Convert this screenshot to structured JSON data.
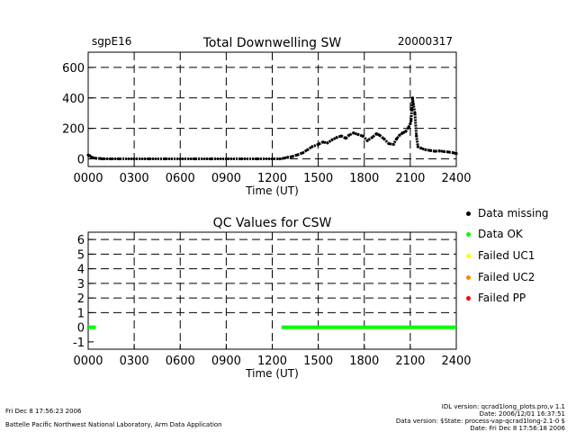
{
  "chart_data": [
    {
      "type": "scatter",
      "title": "Total Downwelling SW",
      "subtitle_left": "sgpE16",
      "subtitle_right": "20000317",
      "xlabel": "Time (UT)",
      "ylabel": "",
      "xlim": [
        0,
        24
      ],
      "ylim": [
        -50,
        700
      ],
      "x_tick_labels": [
        "0000",
        "0300",
        "0600",
        "0900",
        "1200",
        "1500",
        "1800",
        "2100",
        "2400"
      ],
      "y_tick_labels": [
        "0",
        "200",
        "400",
        "600"
      ],
      "grid": true,
      "series": [
        {
          "color": "#000000",
          "x": [
            0.0,
            0.1,
            0.2,
            0.3,
            0.5,
            0.8,
            1.0,
            1.5,
            2.0,
            3.0,
            4.0,
            5.0,
            6.0,
            7.0,
            8.0,
            9.0,
            10.0,
            11.0,
            12.0,
            12.5,
            12.8,
            13.0,
            13.3,
            13.6,
            14.0,
            14.3,
            14.6,
            15.0,
            15.3,
            15.6,
            15.9,
            16.2,
            16.5,
            16.8,
            17.0,
            17.3,
            17.6,
            17.9,
            18.2,
            18.5,
            18.8,
            19.0,
            19.3,
            19.6,
            19.9,
            20.1,
            20.3,
            20.5,
            20.7,
            20.9,
            21.0,
            21.05,
            21.1,
            21.15,
            21.2,
            21.3,
            21.4,
            21.5,
            21.7,
            22.0,
            22.3,
            22.6,
            22.9,
            23.2,
            23.5,
            23.8,
            24.0
          ],
          "y": [
            25,
            20,
            12,
            8,
            4,
            2,
            0,
            0,
            0,
            0,
            0,
            0,
            0,
            0,
            0,
            0,
            0,
            0,
            0,
            0,
            5,
            10,
            15,
            25,
            40,
            60,
            80,
            95,
            110,
            105,
            125,
            140,
            150,
            135,
            155,
            170,
            160,
            150,
            120,
            140,
            165,
            155,
            130,
            100,
            95,
            130,
            155,
            170,
            180,
            210,
            230,
            250,
            330,
            400,
            360,
            300,
            150,
            80,
            70,
            60,
            55,
            50,
            52,
            48,
            45,
            40,
            35
          ]
        }
      ]
    },
    {
      "type": "scatter",
      "title": "QC Values for CSW",
      "xlabel": "Time (UT)",
      "ylabel": "",
      "xlim": [
        0,
        24
      ],
      "ylim": [
        -1.5,
        6.5
      ],
      "x_tick_labels": [
        "0000",
        "0300",
        "0600",
        "0900",
        "1200",
        "1500",
        "1800",
        "2100",
        "2400"
      ],
      "y_tick_labels": [
        "-1",
        "0",
        "1",
        "2",
        "3",
        "4",
        "5",
        "6"
      ],
      "grid": true,
      "series": [
        {
          "color": "#00ff00",
          "x_ranges": [
            [
              0.0,
              0.5
            ],
            [
              12.6,
              24.0
            ]
          ],
          "value": 0
        }
      ]
    }
  ],
  "legend": {
    "items": [
      {
        "label": "Data missing",
        "color": "#000000"
      },
      {
        "label": "Data OK",
        "color": "#00ff00"
      },
      {
        "label": "Failed UC1",
        "color": "#ffff00"
      },
      {
        "label": "Failed UC2",
        "color": "#ff8800"
      },
      {
        "label": "Failed PP",
        "color": "#ff0000"
      }
    ]
  },
  "footer": {
    "left_date": "Fri Dec  8 17:56:23 2006",
    "left_org": "Battelle Pacific Northwest National Laboratory, Arm Data Application",
    "right_lines": [
      "IDL version: qcrad1long_plots.pro,v 1.1",
      "Date: 2006/12/01 16:37:51",
      "Data version: $State: process-vap-qcrad1long-2.1-0 $",
      "Date: Fri Dec  8 17:56:18 2006"
    ]
  }
}
